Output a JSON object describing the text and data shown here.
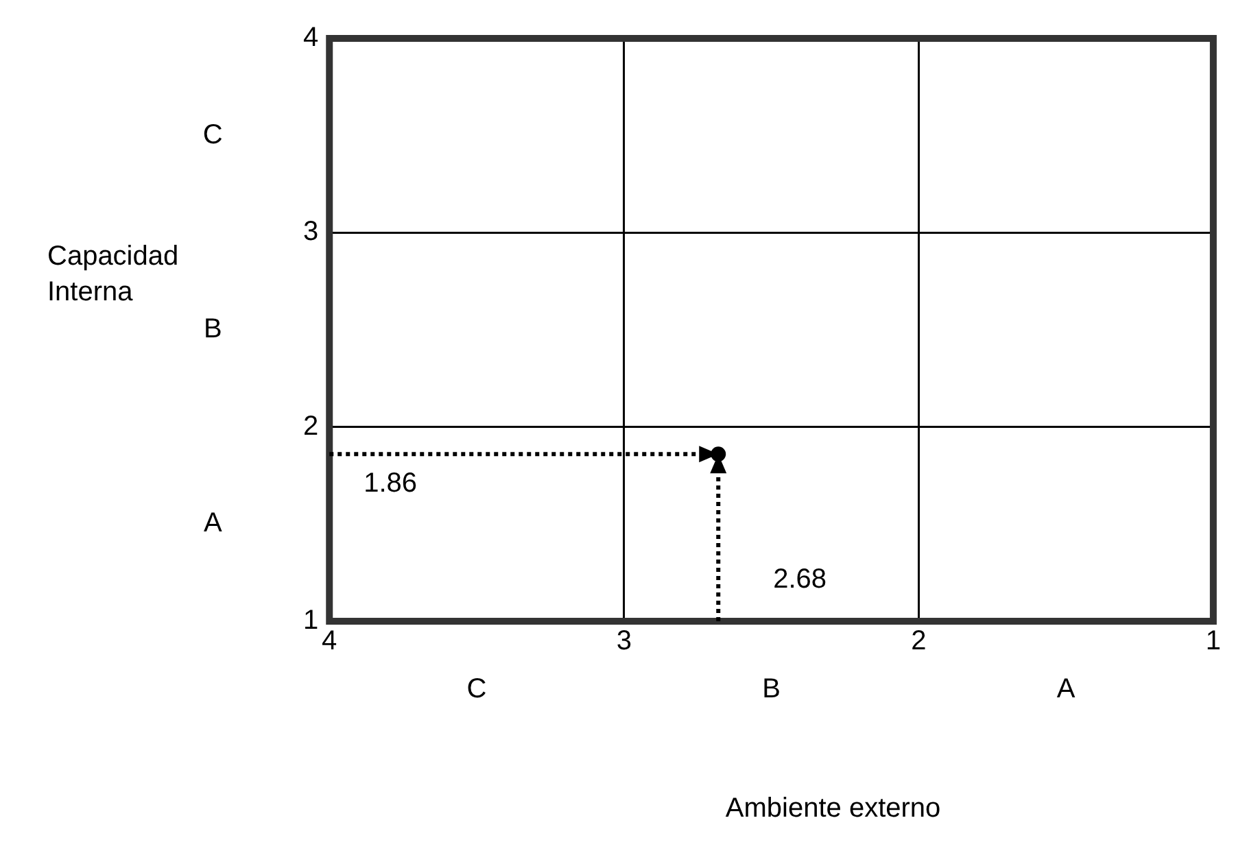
{
  "chart_data": {
    "type": "scatter",
    "xlabel": "Ambiente externo",
    "ylabel": "Capacidad Interna",
    "xlim": [
      4,
      1
    ],
    "xticks": [
      4,
      3,
      2,
      1
    ],
    "ylim": [
      1,
      4
    ],
    "yticks": [
      1,
      2,
      3,
      4
    ],
    "grid": true,
    "marker": "circle",
    "line_style": "dotted",
    "series": [
      {
        "color": "#000000",
        "x": [
          2.68
        ],
        "values": [
          1.86
        ]
      }
    ],
    "annotations": [
      "C",
      "B",
      "A",
      "A",
      "B",
      "C",
      "1.86",
      "2.68"
    ]
  }
}
